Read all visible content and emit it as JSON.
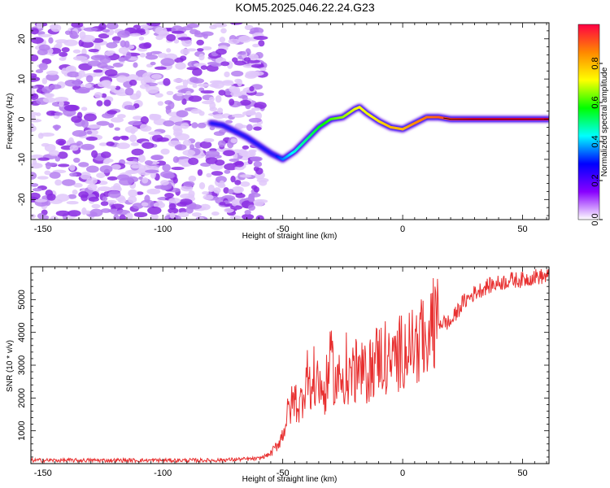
{
  "title": "KOM5.2025.046.22.24.G23",
  "chart_data": [
    {
      "type": "heatmap",
      "xlabel": "Height of straight line (km)",
      "ylabel": "Frequency (Hz)",
      "xlim": [
        -155,
        61
      ],
      "ylim": [
        -25,
        24
      ],
      "xticks": [
        -150,
        -100,
        -50,
        0,
        50
      ],
      "yticks": [
        -20,
        -10,
        0,
        10,
        20
      ],
      "colorbar": {
        "label": "Normalized spectral amplitude",
        "range": [
          0,
          1
        ],
        "ticks": [
          "0.0",
          "0.2",
          "0.4",
          "0.6",
          "0.8"
        ],
        "colors": [
          "#ffffff",
          "#8800ff",
          "#0000ff",
          "#00ffff",
          "#00ff00",
          "#ffff00",
          "#ff8800",
          "#ff0044"
        ]
      },
      "noise_region": {
        "x_range": [
          -155,
          -58
        ],
        "y_range": [
          -25,
          24
        ],
        "amplitude": 0.1
      },
      "trace": {
        "x": [
          -80,
          -75,
          -70,
          -65,
          -60,
          -55,
          -50,
          -45,
          -40,
          -35,
          -30,
          -25,
          -20,
          -18,
          -15,
          -10,
          -5,
          0,
          5,
          10,
          15,
          20,
          30,
          40,
          50,
          61
        ],
        "y": [
          -1,
          -1.5,
          -3,
          -4.5,
          -6.5,
          -8.5,
          -10,
          -8,
          -5,
          -2,
          0,
          0.5,
          2.5,
          3,
          1.5,
          -0.5,
          -2,
          -2.5,
          -1,
          0.5,
          0.5,
          0,
          0,
          0,
          0,
          0
        ],
        "amplitude": [
          0.1,
          0.12,
          0.15,
          0.17,
          0.2,
          0.25,
          0.35,
          0.45,
          0.5,
          0.55,
          0.6,
          0.65,
          0.7,
          0.72,
          0.7,
          0.75,
          0.8,
          0.8,
          0.85,
          0.88,
          0.9,
          0.95,
          1.0,
          1.0,
          1.0,
          1.0
        ]
      }
    },
    {
      "type": "line",
      "xlabel": "Height of straight line (km)",
      "ylabel": "SNR (10 * v/v)",
      "xlim": [
        -155,
        61
      ],
      "ylim": [
        0,
        6000
      ],
      "xticks": [
        -150,
        -100,
        -50,
        0,
        50
      ],
      "yticks": [
        1000,
        2000,
        3000,
        4000,
        5000
      ],
      "color": "#e83030",
      "series": [
        {
          "x": [
            -155,
            -140,
            -120,
            -100,
            -80,
            -60,
            -55,
            -52,
            -50,
            -48,
            -45,
            -43,
            -40,
            -38,
            -35,
            -33,
            -30,
            -28,
            -25,
            -20,
            -15,
            -10,
            -5,
            0,
            5,
            10,
            15,
            20,
            25,
            30,
            35,
            40,
            45,
            50,
            55,
            61
          ],
          "y": [
            100,
            100,
            100,
            100,
            100,
            150,
            300,
            600,
            900,
            1500,
            2000,
            1700,
            2700,
            2200,
            2600,
            2000,
            3100,
            2500,
            2600,
            2800,
            2700,
            3300,
            3000,
            3500,
            3600,
            3800,
            4300,
            4300,
            4900,
            5200,
            5400,
            5500,
            5600,
            5600,
            5700,
            5700
          ]
        }
      ]
    }
  ]
}
